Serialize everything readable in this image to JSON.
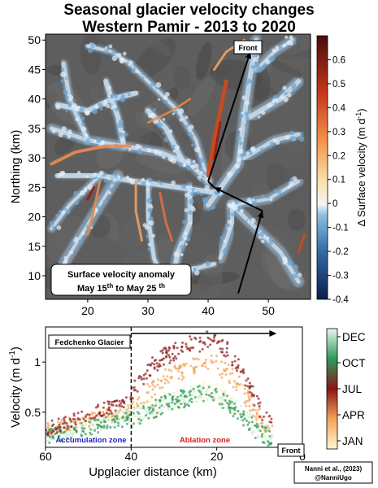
{
  "header": {
    "title_line1": "Seasonal glacier velocity changes",
    "title_line2": "Western Pamir - 2013 to 2020"
  },
  "credit": {
    "line1": "Nanni et al., (2023)",
    "line2": "@NanniUgo"
  },
  "colors": {
    "map_background": "#5e5e5e",
    "glacier_base": "#b4d2ea",
    "anomaly_high": "#d0491f",
    "anomaly_max": "#8a1616",
    "accumulation_label": "#1f1fbf",
    "ablation_label": "#d62020"
  },
  "chart_data": [
    {
      "type": "heatmap",
      "ylabel": "Northing (km)",
      "x_ticks": [
        20,
        30,
        40,
        50
      ],
      "y_ticks": [
        10,
        15,
        20,
        25,
        30,
        35,
        40,
        45,
        50
      ],
      "xlim": [
        13,
        57
      ],
      "ylim": [
        6,
        51
      ],
      "colorbar": {
        "label_prefix": "Δ Surface velocity (m d",
        "label_exp": "-1",
        "label_suffix": ")",
        "ticks": [
          -0.4,
          -0.3,
          -0.2,
          -0.1,
          0,
          0.1,
          0.2,
          0.3,
          0.4,
          0.5,
          0.6
        ],
        "tick_labels": [
          "-0.4",
          "-0.3",
          "-0.2",
          "-0.1",
          "0",
          "0.1",
          "0.2",
          "0.3",
          "0.4",
          "0.5",
          "0.6"
        ],
        "range": [
          -0.4,
          0.7
        ]
      },
      "annotations": {
        "front_label": "Front",
        "anomaly_box_line1": "Surface velocity anomaly",
        "anomaly_box_line2_a": "May 15",
        "anomaly_box_line2_sup1": "th",
        "anomaly_box_line2_b": " to May 25 ",
        "anomaly_box_line2_sup2": "th"
      },
      "flowline": [
        [
          45,
          7
        ],
        [
          49,
          21
        ],
        [
          41,
          25
        ],
        [
          40,
          26
        ],
        [
          47,
          48
        ]
      ]
    },
    {
      "type": "scatter",
      "xlabel": "Upglacier distance (km)",
      "ylabel_prefix": "Velocity (m d",
      "ylabel_exp": "-1",
      "ylabel_suffix": ")",
      "x_ticks": [
        60,
        40,
        20,
        0
      ],
      "y_ticks": [
        0.5,
        1
      ],
      "y_tick_labels": [
        "0.5",
        "1"
      ],
      "xlim": [
        60,
        0
      ],
      "ylim": [
        0.15,
        1.35
      ],
      "glacier_label": "Fedchenko Glacier",
      "front_label": "Front",
      "accumulation_label": "Accumulation zone",
      "ablation_label": "Ablation zone",
      "zone_boundary_km": 40,
      "arrow_from_km": 40,
      "arrow_to_km": 6,
      "colorbar": {
        "ticks": [
          "DEC",
          "OCT",
          "JUL",
          "APR",
          "JAN"
        ]
      },
      "series": [
        {
          "month": "JAN",
          "color": "#fff3c8",
          "x": [
            60,
            56,
            52,
            48,
            44,
            41,
            38,
            35,
            32,
            29,
            26,
            23,
            21,
            19,
            17,
            15,
            13,
            11,
            9,
            7
          ],
          "y": [
            0.3,
            0.33,
            0.37,
            0.41,
            0.45,
            0.47,
            0.5,
            0.55,
            0.6,
            0.64,
            0.68,
            0.72,
            0.72,
            0.66,
            0.6,
            0.52,
            0.44,
            0.37,
            0.3,
            0.25
          ]
        },
        {
          "month": "APR",
          "color": "#f2a154",
          "x": [
            60,
            56,
            52,
            48,
            44,
            41,
            38,
            35,
            32,
            29,
            26,
            23,
            21,
            19,
            17,
            15,
            13,
            11,
            9,
            7
          ],
          "y": [
            0.32,
            0.36,
            0.4,
            0.44,
            0.48,
            0.52,
            0.62,
            0.74,
            0.84,
            0.9,
            0.95,
            0.98,
            1.0,
            0.94,
            0.88,
            0.78,
            0.64,
            0.52,
            0.42,
            0.34
          ]
        },
        {
          "month": "JUL",
          "color": "#8b1a1a",
          "x": [
            60,
            56,
            52,
            48,
            44,
            41,
            38,
            35,
            32,
            29,
            26,
            23,
            21,
            19,
            17,
            15,
            13,
            11,
            9,
            7
          ],
          "y": [
            0.33,
            0.38,
            0.44,
            0.5,
            0.56,
            0.62,
            0.82,
            0.96,
            1.06,
            1.12,
            1.18,
            1.2,
            1.24,
            1.18,
            1.1,
            0.96,
            0.8,
            0.62,
            0.48,
            0.38
          ]
        },
        {
          "month": "OCT",
          "color": "#2f9a5a",
          "x": [
            60,
            56,
            52,
            48,
            44,
            41,
            38,
            35,
            32,
            29,
            26,
            23,
            21,
            19,
            17,
            15,
            13,
            11,
            9,
            7
          ],
          "y": [
            0.26,
            0.28,
            0.32,
            0.36,
            0.4,
            0.43,
            0.46,
            0.52,
            0.58,
            0.62,
            0.66,
            0.7,
            0.7,
            0.64,
            0.56,
            0.48,
            0.4,
            0.33,
            0.27,
            0.23
          ]
        },
        {
          "month": "DEC",
          "color": "#cfeedd",
          "x": [
            60,
            56,
            52,
            48,
            44,
            41,
            38,
            35,
            32,
            29,
            26,
            23,
            21,
            19,
            17,
            15,
            13,
            11,
            9,
            7
          ],
          "y": [
            0.28,
            0.3,
            0.34,
            0.38,
            0.42,
            0.45,
            0.48,
            0.54,
            0.59,
            0.63,
            0.67,
            0.71,
            0.71,
            0.65,
            0.58,
            0.5,
            0.42,
            0.35,
            0.29,
            0.24
          ]
        }
      ]
    }
  ]
}
